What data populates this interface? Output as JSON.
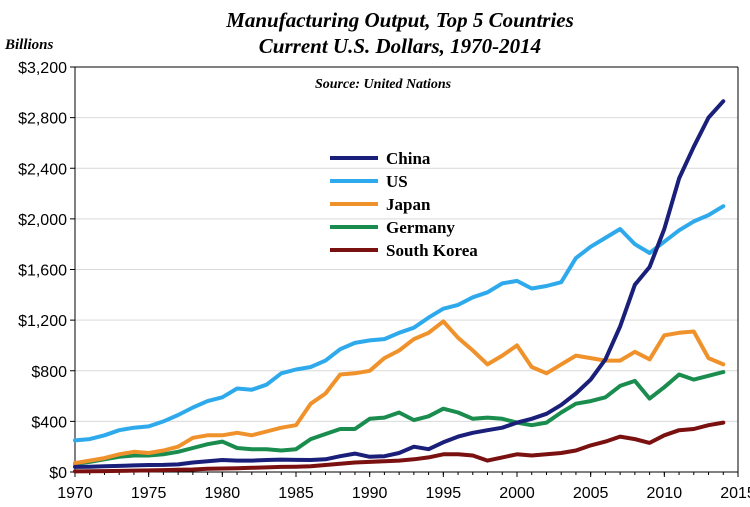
{
  "chart_data": {
    "type": "line",
    "title": "Manufacturing Output, Top 5 Countries",
    "subtitle": "Current U.S. Dollars, 1970-2014",
    "source": "Source: United Nations",
    "ylabel": "Billions",
    "xlabel": "",
    "xlim": [
      1970,
      2015
    ],
    "ylim": [
      0,
      3200
    ],
    "x_ticks": [
      "1970",
      "1975",
      "1980",
      "1985",
      "1990",
      "1995",
      "2000",
      "2005",
      "2010",
      "2015"
    ],
    "y_ticks": [
      "$0",
      "$400",
      "$800",
      "$1,200",
      "$1,600",
      "$2,000",
      "$2,400",
      "$2,800",
      "$3,200"
    ],
    "grid": true,
    "legend_position": "center",
    "x": [
      1970,
      1971,
      1972,
      1973,
      1974,
      1975,
      1976,
      1977,
      1978,
      1979,
      1980,
      1981,
      1982,
      1983,
      1984,
      1985,
      1986,
      1987,
      1988,
      1989,
      1990,
      1991,
      1992,
      1993,
      1994,
      1995,
      1996,
      1997,
      1998,
      1999,
      2000,
      2001,
      2002,
      2003,
      2004,
      2005,
      2006,
      2007,
      2008,
      2009,
      2010,
      2011,
      2012,
      2013,
      2014
    ],
    "series": [
      {
        "name": "China",
        "color": "#1a1f7a",
        "values": [
          40,
          42,
          45,
          48,
          52,
          55,
          56,
          60,
          75,
          85,
          95,
          90,
          90,
          95,
          98,
          96,
          95,
          100,
          125,
          145,
          120,
          125,
          150,
          200,
          180,
          235,
          280,
          310,
          330,
          350,
          390,
          420,
          460,
          530,
          620,
          730,
          890,
          1150,
          1480,
          1620,
          1920,
          2320,
          2570,
          2800,
          2930
        ]
      },
      {
        "name": "US",
        "color": "#2eaaec",
        "values": [
          250,
          260,
          290,
          330,
          350,
          360,
          400,
          450,
          510,
          560,
          590,
          660,
          650,
          690,
          780,
          810,
          830,
          880,
          970,
          1020,
          1040,
          1050,
          1100,
          1140,
          1220,
          1290,
          1320,
          1380,
          1420,
          1490,
          1510,
          1450,
          1470,
          1500,
          1690,
          1780,
          1850,
          1920,
          1800,
          1730,
          1820,
          1910,
          1980,
          2030,
          2100
        ]
      },
      {
        "name": "Japan",
        "color": "#f0922b",
        "values": [
          70,
          90,
          110,
          140,
          160,
          150,
          170,
          200,
          270,
          290,
          290,
          310,
          290,
          320,
          350,
          370,
          540,
          620,
          770,
          780,
          800,
          900,
          960,
          1050,
          1100,
          1190,
          1060,
          960,
          850,
          920,
          1000,
          830,
          780,
          850,
          920,
          900,
          880,
          880,
          950,
          890,
          1080,
          1100,
          1110,
          900,
          850
        ]
      },
      {
        "name": "Germany",
        "color": "#1a8c4e",
        "values": [
          65,
          80,
          100,
          120,
          130,
          130,
          140,
          160,
          190,
          220,
          240,
          190,
          180,
          180,
          170,
          180,
          260,
          300,
          340,
          340,
          420,
          430,
          470,
          410,
          440,
          500,
          470,
          420,
          430,
          420,
          390,
          370,
          390,
          470,
          540,
          560,
          590,
          680,
          720,
          580,
          670,
          770,
          730,
          760,
          790
        ]
      },
      {
        "name": "South Korea",
        "color": "#7a1010",
        "values": [
          5,
          6,
          7,
          9,
          11,
          13,
          15,
          18,
          20,
          25,
          28,
          30,
          33,
          36,
          40,
          42,
          45,
          55,
          65,
          75,
          80,
          85,
          90,
          100,
          115,
          140,
          140,
          130,
          90,
          115,
          140,
          130,
          140,
          150,
          170,
          210,
          240,
          280,
          260,
          230,
          290,
          330,
          340,
          370,
          390
        ]
      }
    ]
  }
}
